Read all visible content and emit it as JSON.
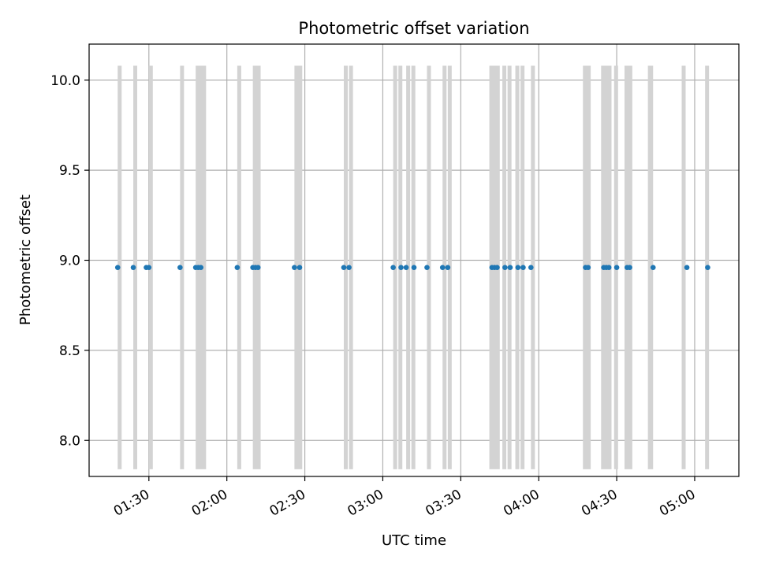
{
  "chart_data": {
    "type": "scatter",
    "title": "Photometric offset variation",
    "xlabel": "UTC time",
    "ylabel": "Photometric offset",
    "x_unit": "UTC time (HH:MM)",
    "xlim": [
      "01:07",
      "05:17"
    ],
    "ylim": [
      7.8,
      10.2
    ],
    "grid": true,
    "x_ticks": [
      "01:30",
      "02:00",
      "02:30",
      "03:00",
      "03:30",
      "04:00",
      "04:30",
      "05:00"
    ],
    "y_ticks": [
      8.0,
      8.5,
      9.0,
      9.5,
      10.0
    ],
    "y_tick_labels": [
      "8.0",
      "8.5",
      "9.0",
      "9.5",
      "10.0"
    ],
    "series": [
      {
        "marker_color": "#1f77b4",
        "x": [
          "01:18",
          "01:24",
          "01:29",
          "01:30",
          "01:42",
          "01:48",
          "01:49",
          "01:50",
          "02:04",
          "02:10",
          "02:11",
          "02:12",
          "02:26",
          "02:28",
          "02:45",
          "02:47",
          "03:04",
          "03:07",
          "03:09",
          "03:12",
          "03:17",
          "03:23",
          "03:25",
          "03:42",
          "03:43",
          "03:44",
          "03:47",
          "03:49",
          "03:52",
          "03:54",
          "03:57",
          "04:18",
          "04:19",
          "04:25",
          "04:26",
          "04:27",
          "04:30",
          "04:34",
          "04:35",
          "04:44",
          "04:57",
          "05:05"
        ],
        "y": [
          8.96,
          8.96,
          8.96,
          8.96,
          8.96,
          8.96,
          8.96,
          8.96,
          8.96,
          8.96,
          8.96,
          8.96,
          8.96,
          8.96,
          8.96,
          8.96,
          8.96,
          8.96,
          8.96,
          8.96,
          8.96,
          8.96,
          8.96,
          8.96,
          8.96,
          8.96,
          8.96,
          8.96,
          8.96,
          8.96,
          8.96,
          8.96,
          8.96,
          8.96,
          8.96,
          8.96,
          8.96,
          8.96,
          8.96,
          8.96,
          8.96,
          8.96
        ]
      }
    ],
    "shaded_spans": {
      "color": "#d3d3d3",
      "y_range": [
        7.84,
        10.08
      ],
      "x_intervals": [
        [
          "01:18",
          "01:19"
        ],
        [
          "01:24",
          "01:25"
        ],
        [
          "01:30",
          "01:31"
        ],
        [
          "01:42",
          "01:43"
        ],
        [
          "01:48",
          "01:52"
        ],
        [
          "02:04",
          "02:05"
        ],
        [
          "02:10",
          "02:13"
        ],
        [
          "02:26",
          "02:29"
        ],
        [
          "02:45",
          "02:46"
        ],
        [
          "02:47",
          "02:48"
        ],
        [
          "03:04",
          "03:05"
        ],
        [
          "03:06",
          "03:07"
        ],
        [
          "03:09",
          "03:10"
        ],
        [
          "03:11",
          "03:12"
        ],
        [
          "03:17",
          "03:18"
        ],
        [
          "03:23",
          "03:24"
        ],
        [
          "03:25",
          "03:26"
        ],
        [
          "03:41",
          "03:45"
        ],
        [
          "03:46",
          "03:47"
        ],
        [
          "03:48",
          "03:49"
        ],
        [
          "03:51",
          "03:52"
        ],
        [
          "03:53",
          "03:54"
        ],
        [
          "03:57",
          "03:58"
        ],
        [
          "04:17",
          "04:20"
        ],
        [
          "04:24",
          "04:28"
        ],
        [
          "04:29",
          "04:30"
        ],
        [
          "04:33",
          "04:36"
        ],
        [
          "04:42",
          "04:44"
        ],
        [
          "04:55",
          "04:56"
        ],
        [
          "05:04",
          "05:05"
        ]
      ]
    }
  }
}
